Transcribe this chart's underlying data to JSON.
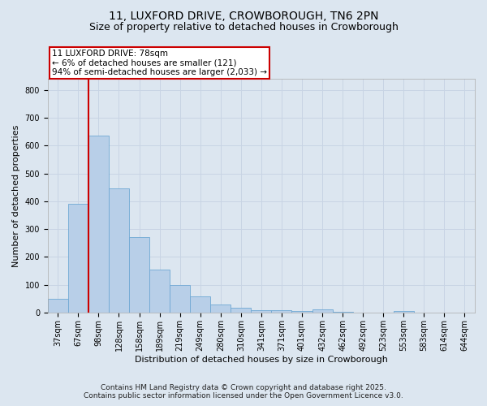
{
  "title1": "11, LUXFORD DRIVE, CROWBOROUGH, TN6 2PN",
  "title2": "Size of property relative to detached houses in Crowborough",
  "xlabel": "Distribution of detached houses by size in Crowborough",
  "ylabel": "Number of detached properties",
  "categories": [
    "37sqm",
    "67sqm",
    "98sqm",
    "128sqm",
    "158sqm",
    "189sqm",
    "219sqm",
    "249sqm",
    "280sqm",
    "310sqm",
    "341sqm",
    "371sqm",
    "401sqm",
    "432sqm",
    "462sqm",
    "492sqm",
    "523sqm",
    "553sqm",
    "583sqm",
    "614sqm",
    "644sqm"
  ],
  "values": [
    50,
    390,
    635,
    445,
    270,
    155,
    100,
    57,
    30,
    18,
    10,
    8,
    5,
    12,
    4,
    0,
    0,
    7,
    0,
    0,
    0
  ],
  "bar_color": "#b8cfe8",
  "bar_edge_color": "#6fa8d4",
  "grid_color": "#c8d4e4",
  "background_color": "#dce6f0",
  "vline_color": "#cc0000",
  "vline_position": 1.5,
  "annotation_text1": "11 LUXFORD DRIVE: 78sqm",
  "annotation_text2": "← 6% of detached houses are smaller (121)",
  "annotation_text3": "94% of semi-detached houses are larger (2,033) →",
  "footer1": "Contains HM Land Registry data © Crown copyright and database right 2025.",
  "footer2": "Contains public sector information licensed under the Open Government Licence v3.0.",
  "ylim": [
    0,
    840
  ],
  "yticks": [
    0,
    100,
    200,
    300,
    400,
    500,
    600,
    700,
    800
  ],
  "title_fontsize": 10,
  "subtitle_fontsize": 9,
  "axis_label_fontsize": 8,
  "tick_fontsize": 7,
  "footer_fontsize": 6.5,
  "annot_fontsize": 7.5
}
